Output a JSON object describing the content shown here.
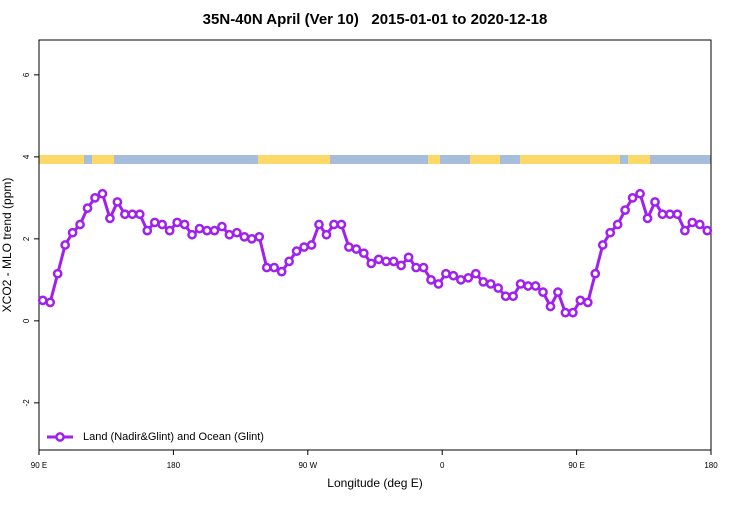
{
  "chart_data": {
    "type": "line",
    "title": "35N-40N April (Ver 10)   2015-01-01 to 2020-12-18",
    "x_label": "Longitude (deg E)",
    "y_label": "XCO2 - MLO trend (ppm)",
    "xlim": [
      90,
      540
    ],
    "xticks": [
      {
        "value": 90,
        "label": "90 E"
      },
      {
        "value": 180,
        "label": "180"
      },
      {
        "value": 270,
        "label": "90 W"
      },
      {
        "value": 360,
        "label": "0"
      },
      {
        "value": 450,
        "label": "90 E"
      },
      {
        "value": 540,
        "label": "180"
      }
    ],
    "ylim": [
      -3.15,
      6.85
    ],
    "yticks": [
      -2,
      0,
      2,
      4,
      6
    ],
    "legend": "bottom-left",
    "x": [
      92.5,
      97.5,
      102.5,
      107.5,
      112.5,
      117.5,
      122.5,
      127.5,
      132.5,
      137.5,
      142.5,
      147.5,
      152.5,
      157.5,
      162.5,
      167.5,
      172.5,
      177.5,
      182.5,
      187.5,
      192.5,
      197.5,
      202.5,
      207.5,
      212.5,
      217.5,
      222.5,
      227.5,
      232.5,
      237.5,
      242.5,
      247.5,
      252.5,
      257.5,
      262.5,
      267.5,
      272.5,
      277.5,
      282.5,
      287.5,
      292.5,
      297.5,
      302.5,
      307.5,
      312.5,
      317.5,
      322.5,
      327.5,
      332.5,
      337.5,
      342.5,
      347.5,
      352.5,
      357.5,
      362.5,
      367.5,
      372.5,
      377.5,
      382.5,
      387.5,
      392.5,
      397.5,
      402.5,
      407.5,
      412.5,
      417.5,
      422.5,
      427.5,
      432.5,
      437.5,
      442.5,
      447.5,
      452.5,
      457.5,
      462.5,
      467.5,
      472.5,
      477.5,
      482.5,
      487.5,
      492.5,
      497.5,
      502.5,
      507.5,
      512.5,
      517.5,
      522.5,
      527.5,
      532.5,
      537.5
    ],
    "series": [
      {
        "name": "Land (Nadir&Glint) and Ocean (Glint)",
        "color": "#a020f0",
        "values": [
          0.5,
          0.45,
          1.15,
          1.85,
          2.15,
          2.35,
          2.75,
          3.0,
          3.1,
          2.5,
          2.9,
          2.6,
          2.6,
          2.6,
          2.2,
          2.4,
          2.35,
          2.2,
          2.4,
          2.35,
          2.1,
          2.25,
          2.2,
          2.2,
          2.3,
          2.1,
          2.15,
          2.05,
          2.0,
          2.05,
          1.3,
          1.3,
          1.2,
          1.45,
          1.7,
          1.8,
          1.85,
          2.35,
          2.1,
          2.35,
          2.35,
          1.8,
          1.75,
          1.65,
          1.4,
          1.5,
          1.45,
          1.45,
          1.35,
          1.55,
          1.3,
          1.3,
          1.0,
          0.9,
          1.15,
          1.1,
          1.0,
          1.05,
          1.15,
          0.95,
          0.9,
          0.8,
          0.6,
          0.6,
          0.9,
          0.85,
          0.85,
          0.7,
          0.35,
          0.7,
          0.2,
          0.2,
          0.5,
          0.45,
          1.15,
          1.85,
          2.15,
          2.35,
          2.7,
          3.0,
          3.1,
          2.5,
          2.9,
          2.6,
          2.6,
          2.6,
          2.2,
          2.4,
          2.35,
          2.2
        ]
      }
    ]
  }
}
